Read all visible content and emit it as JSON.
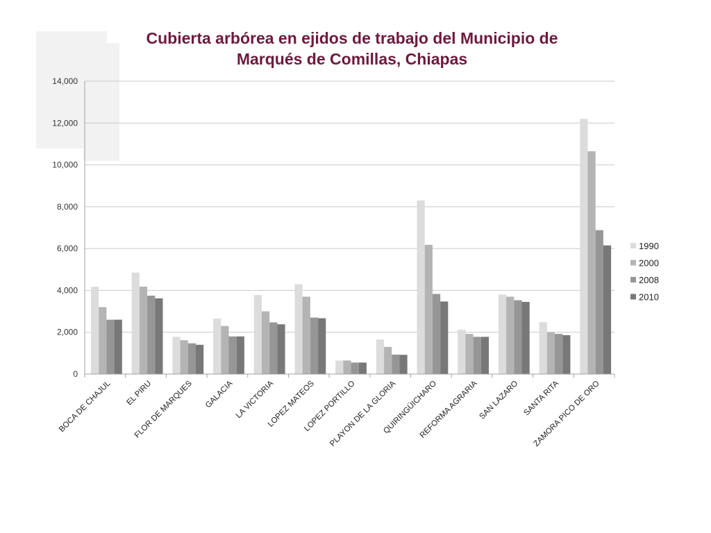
{
  "chart_data": {
    "type": "bar",
    "title_lines": [
      "Cubierta arbórea en ejidos de trabajo del Municipio de",
      "Marqués de Comillas, Chiapas"
    ],
    "categories": [
      "BOCA DE CHAJUL",
      "EL PIRU",
      "FLOR DE MARQUES",
      "GALACIA",
      "LA VICTORIA",
      "LOPEZ MATEOS",
      "LOPEZ PORTILLO",
      "PLAYON DE LA GLORIA",
      "QUIRINGÜICHARO",
      "REFORMA AGRARIA",
      "SAN LAZARO",
      "SANTA RITA",
      "ZAMORA PICO DE ORO"
    ],
    "series": [
      {
        "name": "1990",
        "color": "#dcdcdc",
        "values": [
          4170,
          4850,
          1780,
          2650,
          3780,
          4300,
          650,
          1650,
          8300,
          2120,
          3800,
          2480,
          12200
        ]
      },
      {
        "name": "2000",
        "color": "#b4b4b4",
        "values": [
          3200,
          4180,
          1620,
          2300,
          3000,
          3700,
          650,
          1300,
          6180,
          1920,
          3700,
          2000,
          10650
        ]
      },
      {
        "name": "2008",
        "color": "#969696",
        "values": [
          2600,
          3750,
          1470,
          1800,
          2470,
          2700,
          550,
          930,
          3830,
          1780,
          3530,
          1920,
          6880
        ]
      },
      {
        "name": "2010",
        "color": "#787878",
        "values": [
          2600,
          3620,
          1400,
          1800,
          2380,
          2670,
          550,
          920,
          3470,
          1780,
          3450,
          1860,
          6150
        ]
      }
    ],
    "yticks": [
      "0",
      "2,000",
      "4,000",
      "6,000",
      "8,000",
      "10,000",
      "12,000",
      "14,000"
    ],
    "ylim": [
      0,
      14000
    ],
    "grid": true,
    "legend_position": "right"
  }
}
